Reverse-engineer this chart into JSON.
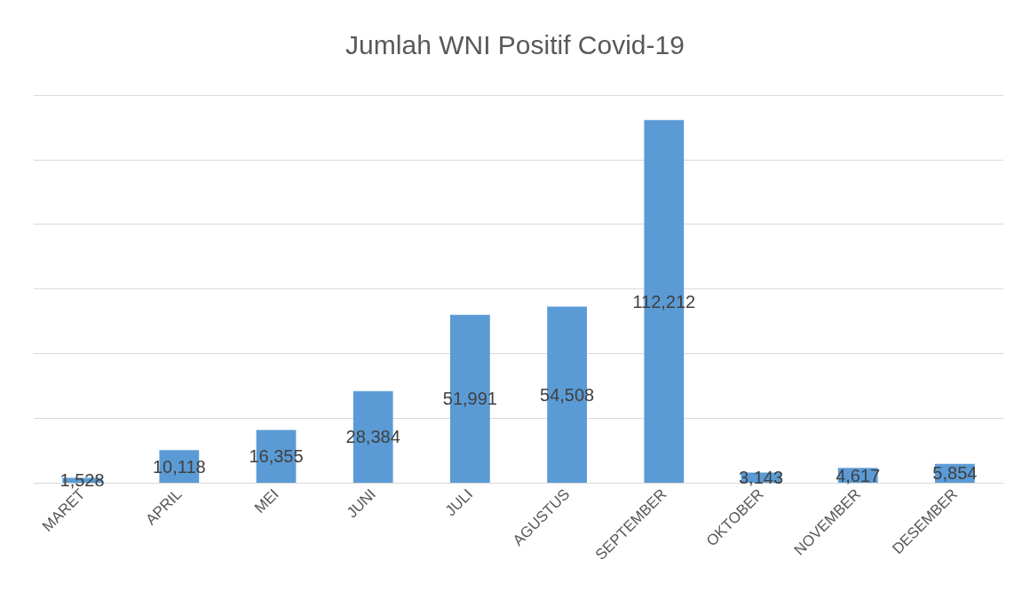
{
  "chart_data": {
    "type": "bar",
    "title": "Jumlah WNI Positif Covid-19",
    "categories": [
      "MARET",
      "APRIL",
      "MEI",
      "JUNI",
      "JULI",
      "AGUSTUS",
      "SEPTEMBER",
      "OKTOBER",
      "NOVEMBER",
      "DESEMBER"
    ],
    "values": [
      1528,
      10118,
      16355,
      28384,
      51991,
      54508,
      112212,
      3143,
      4617,
      5854
    ],
    "value_labels": [
      "1,528",
      "10,118",
      "16,355",
      "28,384",
      "51,991",
      "54,508",
      "112,212",
      "3,143",
      "4,617",
      "5,854"
    ],
    "color": "#5b9bd5",
    "grid": "y",
    "tick_labels": "x"
  }
}
